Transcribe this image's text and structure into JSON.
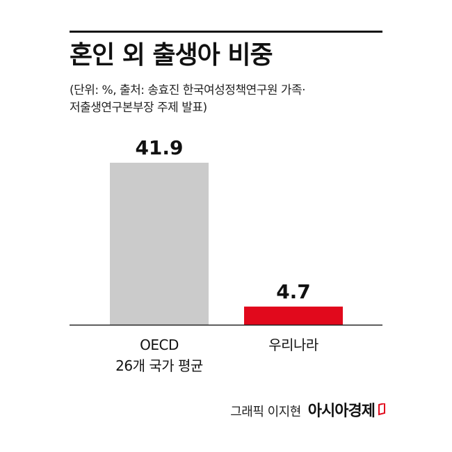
{
  "title": "혼인 외 출생아 비중",
  "subtitle_lines": [
    "(단위: %, 출처: 송효진 한국여성정책연구원 가족·",
    "저출생연구본부장 주제 발표)"
  ],
  "chart_data": {
    "type": "bar",
    "categories": [
      [
        "OECD",
        "26개 국가 평균"
      ],
      [
        "우리나라"
      ]
    ],
    "values": [
      41.9,
      4.7
    ],
    "value_labels": [
      "41.9",
      "4.7"
    ],
    "colors": [
      "#cbcbcb",
      "#e1091c"
    ],
    "ylim": [
      0,
      41.9
    ],
    "grid": false,
    "legend": "none"
  },
  "footer": {
    "credit": "그래픽 이지현",
    "brand": "아시아경제"
  },
  "colors": {
    "axis": "#222222",
    "accent": "#e1091c"
  }
}
